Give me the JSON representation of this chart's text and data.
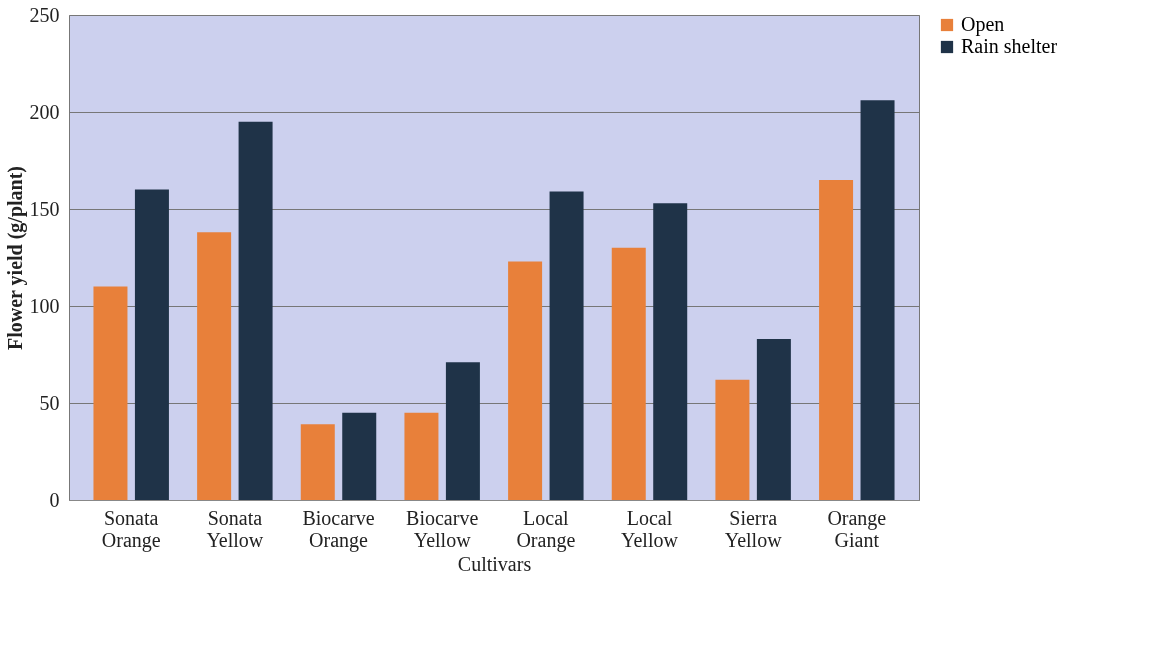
{
  "chart_data": {
    "type": "bar",
    "xlabel": "Cultivars",
    "ylabel": "Flower yield (g/plant)",
    "categories": [
      "Sonata Orange",
      "Sonata Yellow",
      "Biocarve Orange",
      "Biocarve Yellow",
      "Local Orange",
      "Local Yellow",
      "Sierra Yellow",
      "Orange Giant"
    ],
    "series": [
      {
        "name": "Open",
        "color": "#e8803a",
        "values": [
          110,
          138,
          39,
          45,
          123,
          130,
          62,
          165
        ]
      },
      {
        "name": "Rain shelter",
        "color": "#1f3348",
        "values": [
          160,
          195,
          45,
          71,
          159,
          153,
          83,
          206
        ]
      }
    ],
    "ylim": [
      0,
      250
    ],
    "yticks": [
      0,
      50,
      100,
      150,
      200,
      250
    ],
    "grid": "y",
    "legend": "right"
  }
}
